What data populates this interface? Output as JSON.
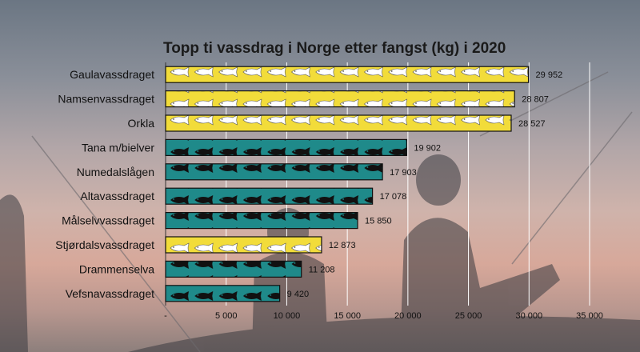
{
  "chart_data": {
    "type": "bar",
    "orientation": "horizontal",
    "title": "Topp ti vassdrag i Norge etter fangst (kg) i 2020",
    "xlabel": "",
    "ylabel": "",
    "categories": [
      "Gaulavassdraget",
      "Namsenvassdraget",
      "Orkla",
      "Tana m/bielver",
      "Numedalslågen",
      "Altavassdraget",
      "Målselvvassdraget",
      "Stjørdalsvassdraget",
      "Drammenselva",
      "Vefsnavassdraget"
    ],
    "values": [
      29952,
      28807,
      28527,
      19902,
      17903,
      17078,
      15850,
      12873,
      11208,
      9420
    ],
    "value_labels": [
      "29 952",
      "28 807",
      "28 527",
      "19 902",
      "17 903",
      "17 078",
      "15 850",
      "12 873",
      "11 208",
      "9 420"
    ],
    "bar_style": [
      "yellow",
      "yellow",
      "yellow",
      "teal",
      "teal",
      "teal",
      "teal",
      "yellow",
      "teal",
      "teal"
    ],
    "xlim": [
      0,
      35000
    ],
    "xticks": [
      0,
      5000,
      10000,
      15000,
      20000,
      25000,
      30000,
      35000
    ],
    "xtick_labels": [
      "-",
      "5 000",
      "10 000",
      "15 000",
      "20 000",
      "25 000",
      "30 000",
      "35 000"
    ],
    "grid": "vertical",
    "legend": "none",
    "colors": {
      "yellow": "#f2dc3a",
      "teal": "#1f8a8a",
      "fish_light": "#ffffff",
      "fish_dark": "#111111"
    },
    "icons": {
      "yellow_bar_pattern": "white-fish-icon",
      "teal_bar_pattern": "black-fish-icon"
    }
  }
}
